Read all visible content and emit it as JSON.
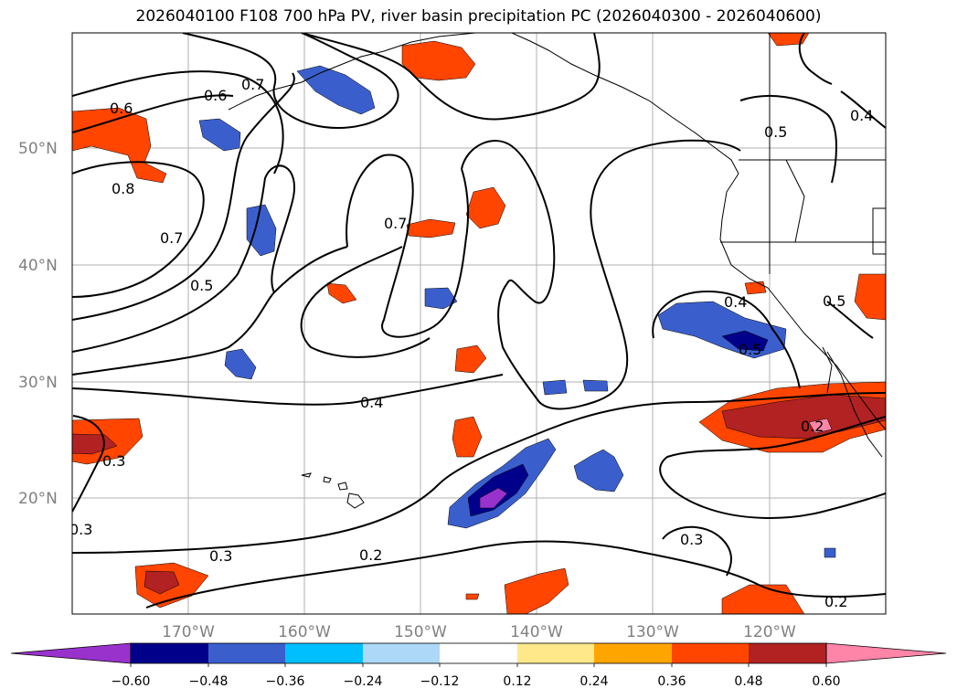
{
  "title": "2026040100 F108 700 hPa PV, river basin precipitation PC (2026040300 - 2026040600)",
  "lat_labels": [
    "50°N",
    "40°N",
    "30°N",
    "20°N"
  ],
  "lon_labels": [
    "170°W",
    "160°W",
    "150°W",
    "140°W",
    "130°W",
    "120°W"
  ],
  "contour_labels": [
    "0.6",
    "0.6",
    "0.7",
    "0.8",
    "0.7",
    "0.5",
    "0.7",
    "0.5",
    "0.4",
    "0.4",
    "0.5",
    "0.5",
    "0.4",
    "0.3",
    "0.3",
    "0.3",
    "0.2",
    "0.3",
    "0.2",
    "0.2"
  ],
  "colorbar": {
    "ticks": [
      "−0.60",
      "−0.48",
      "−0.36",
      "−0.24",
      "−0.12",
      "0.12",
      "0.24",
      "0.36",
      "0.48",
      "0.60"
    ],
    "colors": [
      "#9932cc",
      "#00008b",
      "#3a5fcd",
      "#00bfff",
      "#add8f7",
      "#ffffff",
      "#ffe88a",
      "#ffa500",
      "#ff4500",
      "#b22222",
      "#ff85a8"
    ]
  },
  "colors": {
    "grid": "#b0b0b0",
    "contour": "#000000",
    "coast": "#000000"
  }
}
